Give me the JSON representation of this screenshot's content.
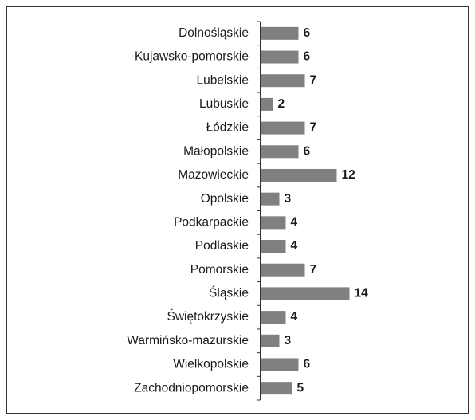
{
  "chart_data": {
    "type": "bar",
    "orientation": "horizontal",
    "categories": [
      "Dolnośląskie",
      "Kujawsko-pomorskie",
      "Lubelskie",
      "Lubuskie",
      "Łódzkie",
      "Małopolskie",
      "Mazowieckie",
      "Opolskie",
      "Podkarpackie",
      "Podlaskie",
      "Pomorskie",
      "Śląskie",
      "Świętokrzyskie",
      "Warmińsko-mazurskie",
      "Wielkopolskie",
      "Zachodniopomorskie"
    ],
    "values": [
      6,
      6,
      7,
      2,
      7,
      6,
      12,
      3,
      4,
      4,
      7,
      14,
      4,
      3,
      6,
      5
    ],
    "color": "#808080"
  }
}
